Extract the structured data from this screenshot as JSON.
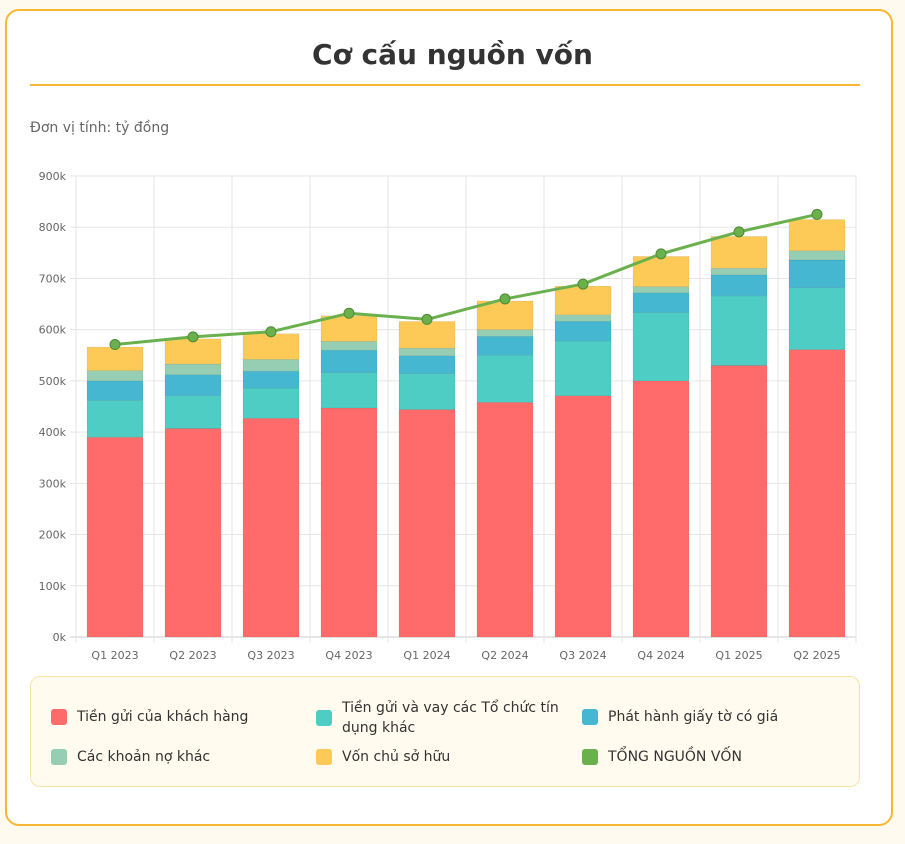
{
  "title": "Cơ cấu nguồn vốn",
  "unit_label": "Đơn vị tính: tỷ đồng",
  "chart_data": {
    "type": "bar",
    "stacked": true,
    "categories": [
      "Q1 2023",
      "Q2 2023",
      "Q3 2023",
      "Q4 2023",
      "Q1 2024",
      "Q2 2024",
      "Q3 2024",
      "Q4 2024",
      "Q1 2025",
      "Q2 2025"
    ],
    "y_ticks": [
      "0k",
      "100k",
      "200k",
      "300k",
      "400k",
      "500k",
      "600k",
      "700k",
      "800k",
      "900k"
    ],
    "ylim": [
      0,
      900000
    ],
    "grid": true,
    "legend_position": "bottom",
    "series": [
      {
        "name": "Tiền gửi của khách hàng",
        "color": "#ff6b6b",
        "type": "bar",
        "values": [
          390000,
          407000,
          427000,
          447000,
          444000,
          458000,
          471000,
          500000,
          530000,
          561000
        ]
      },
      {
        "name": "Tiền gửi và vay các Tổ chức tín dụng khác",
        "color": "#4ecdc4",
        "type": "bar",
        "values": [
          72000,
          64000,
          59000,
          69000,
          70000,
          92000,
          107000,
          133000,
          136000,
          121000
        ]
      },
      {
        "name": "Phát hành giấy tờ có giá",
        "color": "#45b7d1",
        "type": "bar",
        "values": [
          38000,
          41000,
          33000,
          44000,
          35000,
          37000,
          38000,
          39000,
          41000,
          54000
        ]
      },
      {
        "name": "Các khoản nợ khác",
        "color": "#96ceb4",
        "type": "bar",
        "values": [
          20000,
          21000,
          23000,
          17000,
          15000,
          13000,
          13000,
          12000,
          13000,
          18000
        ]
      },
      {
        "name": "Vốn chủ sở hữu",
        "color": "#feca57",
        "type": "bar",
        "values": [
          46000,
          49000,
          50000,
          50000,
          52000,
          56000,
          56000,
          59000,
          62000,
          61000
        ]
      },
      {
        "name": "TỔNG NGUỒN VỐN",
        "color": "#6ab04c",
        "type": "line",
        "values": [
          571000,
          586000,
          596000,
          632000,
          620000,
          660000,
          689000,
          748000,
          791000,
          825000
        ]
      }
    ]
  }
}
